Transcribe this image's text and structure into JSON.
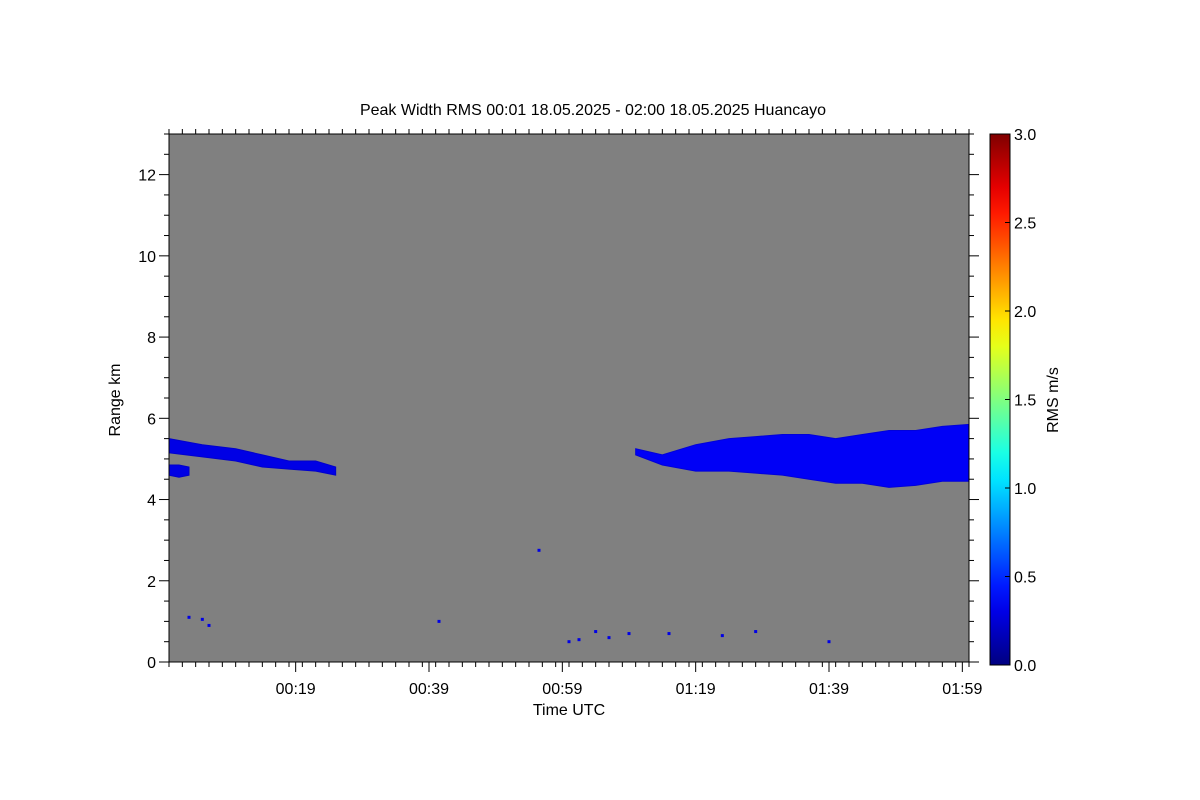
{
  "chart_data": {
    "type": "heatmap",
    "title": "Peak Width RMS   00:01 18.05.2025 - 02:00 18.05.2025 Huancayo",
    "xlabel": "Time UTC",
    "ylabel": "Range km",
    "x_unit": "minutes after 00:01 UTC",
    "xlim": [
      0,
      120
    ],
    "ylim": [
      0,
      13
    ],
    "x_ticks": [
      {
        "value": 19,
        "label": "00:19"
      },
      {
        "value": 39,
        "label": "00:39"
      },
      {
        "value": 59,
        "label": "00:59"
      },
      {
        "value": 79,
        "label": "01:19"
      },
      {
        "value": 99,
        "label": "01:39"
      },
      {
        "value": 119,
        "label": "01:59"
      }
    ],
    "y_ticks": [
      {
        "value": 0,
        "label": "0"
      },
      {
        "value": 2,
        "label": "2"
      },
      {
        "value": 4,
        "label": "4"
      },
      {
        "value": 6,
        "label": "6"
      },
      {
        "value": 8,
        "label": "8"
      },
      {
        "value": 10,
        "label": "10"
      },
      {
        "value": 12,
        "label": "12"
      }
    ],
    "background_color": "#808080",
    "colorbar": {
      "label": "RMS m/s",
      "range": [
        0.0,
        3.0
      ],
      "ticks": [
        "0.0",
        "0.5",
        "1.0",
        "1.5",
        "2.0",
        "2.5",
        "3.0"
      ],
      "colormap": "jet"
    },
    "layers": [
      {
        "name": "upper-layer-early",
        "value": 0.3,
        "profile": [
          {
            "t": 0.0,
            "lo": 5.15,
            "hi": 5.5
          },
          {
            "t": 5.0,
            "lo": 5.05,
            "hi": 5.35
          },
          {
            "t": 10.0,
            "lo": 4.95,
            "hi": 5.25
          },
          {
            "t": 14.0,
            "lo": 4.8,
            "hi": 5.1
          },
          {
            "t": 18.0,
            "lo": 4.75,
            "hi": 4.95
          },
          {
            "t": 22.0,
            "lo": 4.7,
            "hi": 4.95
          },
          {
            "t": 25.0,
            "lo": 4.6,
            "hi": 4.8
          }
        ]
      },
      {
        "name": "lower-fragment-early",
        "value": 0.3,
        "profile": [
          {
            "t": 0.0,
            "lo": 4.6,
            "hi": 4.85
          },
          {
            "t": 1.5,
            "lo": 4.55,
            "hi": 4.85
          },
          {
            "t": 3.0,
            "lo": 4.6,
            "hi": 4.8
          }
        ]
      },
      {
        "name": "upper-layer-late",
        "value": 0.35,
        "profile": [
          {
            "t": 70.0,
            "lo": 5.1,
            "hi": 5.25
          },
          {
            "t": 74.0,
            "lo": 4.85,
            "hi": 5.1
          },
          {
            "t": 79.0,
            "lo": 4.7,
            "hi": 5.35
          },
          {
            "t": 84.0,
            "lo": 4.7,
            "hi": 5.5
          },
          {
            "t": 88.0,
            "lo": 4.65,
            "hi": 5.55
          },
          {
            "t": 92.0,
            "lo": 4.6,
            "hi": 5.6
          },
          {
            "t": 96.0,
            "lo": 4.5,
            "hi": 5.6
          },
          {
            "t": 100.0,
            "lo": 4.4,
            "hi": 5.5
          },
          {
            "t": 104.0,
            "lo": 4.4,
            "hi": 5.6
          },
          {
            "t": 108.0,
            "lo": 4.3,
            "hi": 5.7
          },
          {
            "t": 112.0,
            "lo": 4.35,
            "hi": 5.7
          },
          {
            "t": 116.0,
            "lo": 4.45,
            "hi": 5.8
          },
          {
            "t": 120.0,
            "lo": 4.45,
            "hi": 5.85
          }
        ]
      }
    ],
    "points": [
      {
        "t": 3.0,
        "r": 1.1,
        "value": 0.3
      },
      {
        "t": 5.0,
        "r": 1.05,
        "value": 0.3
      },
      {
        "t": 6.0,
        "r": 0.9,
        "value": 0.3
      },
      {
        "t": 40.5,
        "r": 1.0,
        "value": 0.3
      },
      {
        "t": 55.5,
        "r": 2.75,
        "value": 0.3
      },
      {
        "t": 60.0,
        "r": 0.5,
        "value": 0.3
      },
      {
        "t": 61.5,
        "r": 0.55,
        "value": 0.3
      },
      {
        "t": 64.0,
        "r": 0.75,
        "value": 0.3
      },
      {
        "t": 66.0,
        "r": 0.6,
        "value": 0.3
      },
      {
        "t": 69.0,
        "r": 0.7,
        "value": 0.3
      },
      {
        "t": 75.0,
        "r": 0.7,
        "value": 0.3
      },
      {
        "t": 83.0,
        "r": 0.65,
        "value": 0.3
      },
      {
        "t": 88.0,
        "r": 0.75,
        "value": 0.3
      },
      {
        "t": 99.0,
        "r": 0.5,
        "value": 0.3
      }
    ]
  }
}
